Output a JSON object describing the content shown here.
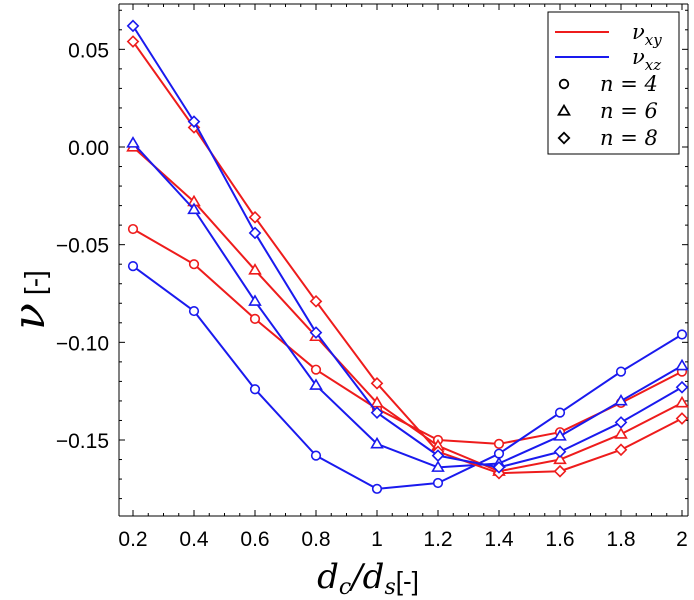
{
  "chart_data": {
    "type": "line",
    "title": "",
    "xlabel": "d_c/d_s",
    "xlabel_unit": "[-]",
    "ylabel": "ν",
    "ylabel_unit": "[-]",
    "xlim": [
      0.2,
      2.0
    ],
    "ylim": [
      -0.19,
      0.075
    ],
    "x": [
      0.2,
      0.4,
      0.6,
      0.8,
      1.0,
      1.2,
      1.4,
      1.6,
      1.8,
      2.0
    ],
    "x_tick_labels": [
      "0.2",
      "0.4",
      "0.6",
      "0.8",
      "1",
      "1.2",
      "1.4",
      "1.6",
      "1.8",
      "2"
    ],
    "y_ticks": [
      -0.15,
      -0.1,
      -0.05,
      0.0,
      0.05
    ],
    "y_tick_labels": [
      "−0.15",
      "−0.10",
      "−0.05",
      "0.00",
      "0.05"
    ],
    "grid": false,
    "legend_position": "top-right",
    "legend": {
      "lines": [
        {
          "label": "ν_xy",
          "color": "#ee1c1c"
        },
        {
          "label": "ν_xz",
          "color": "#1a1aee"
        }
      ],
      "markers": [
        {
          "label": "n = 4",
          "marker": "circle"
        },
        {
          "label": "n = 6",
          "marker": "triangle"
        },
        {
          "label": "n = 8",
          "marker": "diamond"
        }
      ]
    },
    "series": [
      {
        "color": "#ee1c1c",
        "marker": "circle",
        "values": [
          -0.042,
          -0.06,
          -0.088,
          -0.114,
          -0.134,
          -0.15,
          -0.152,
          -0.146,
          -0.131,
          -0.115
        ]
      },
      {
        "color": "#1a1aee",
        "marker": "circle",
        "values": [
          -0.061,
          -0.084,
          -0.124,
          -0.158,
          -0.175,
          -0.172,
          -0.157,
          -0.136,
          -0.115,
          -0.096
        ]
      },
      {
        "color": "#ee1c1c",
        "marker": "triangle",
        "values": [
          0.0,
          -0.028,
          -0.063,
          -0.097,
          -0.131,
          -0.153,
          -0.166,
          -0.16,
          -0.147,
          -0.131
        ]
      },
      {
        "color": "#1a1aee",
        "marker": "triangle",
        "values": [
          0.002,
          -0.032,
          -0.079,
          -0.122,
          -0.152,
          -0.164,
          -0.162,
          -0.148,
          -0.13,
          -0.112
        ]
      },
      {
        "color": "#ee1c1c",
        "marker": "diamond",
        "values": [
          0.054,
          0.01,
          -0.036,
          -0.079,
          -0.121,
          -0.156,
          -0.167,
          -0.166,
          -0.155,
          -0.139
        ]
      },
      {
        "color": "#1a1aee",
        "marker": "diamond",
        "values": [
          0.062,
          0.013,
          -0.044,
          -0.095,
          -0.136,
          -0.158,
          -0.164,
          -0.156,
          -0.141,
          -0.123
        ]
      }
    ]
  }
}
